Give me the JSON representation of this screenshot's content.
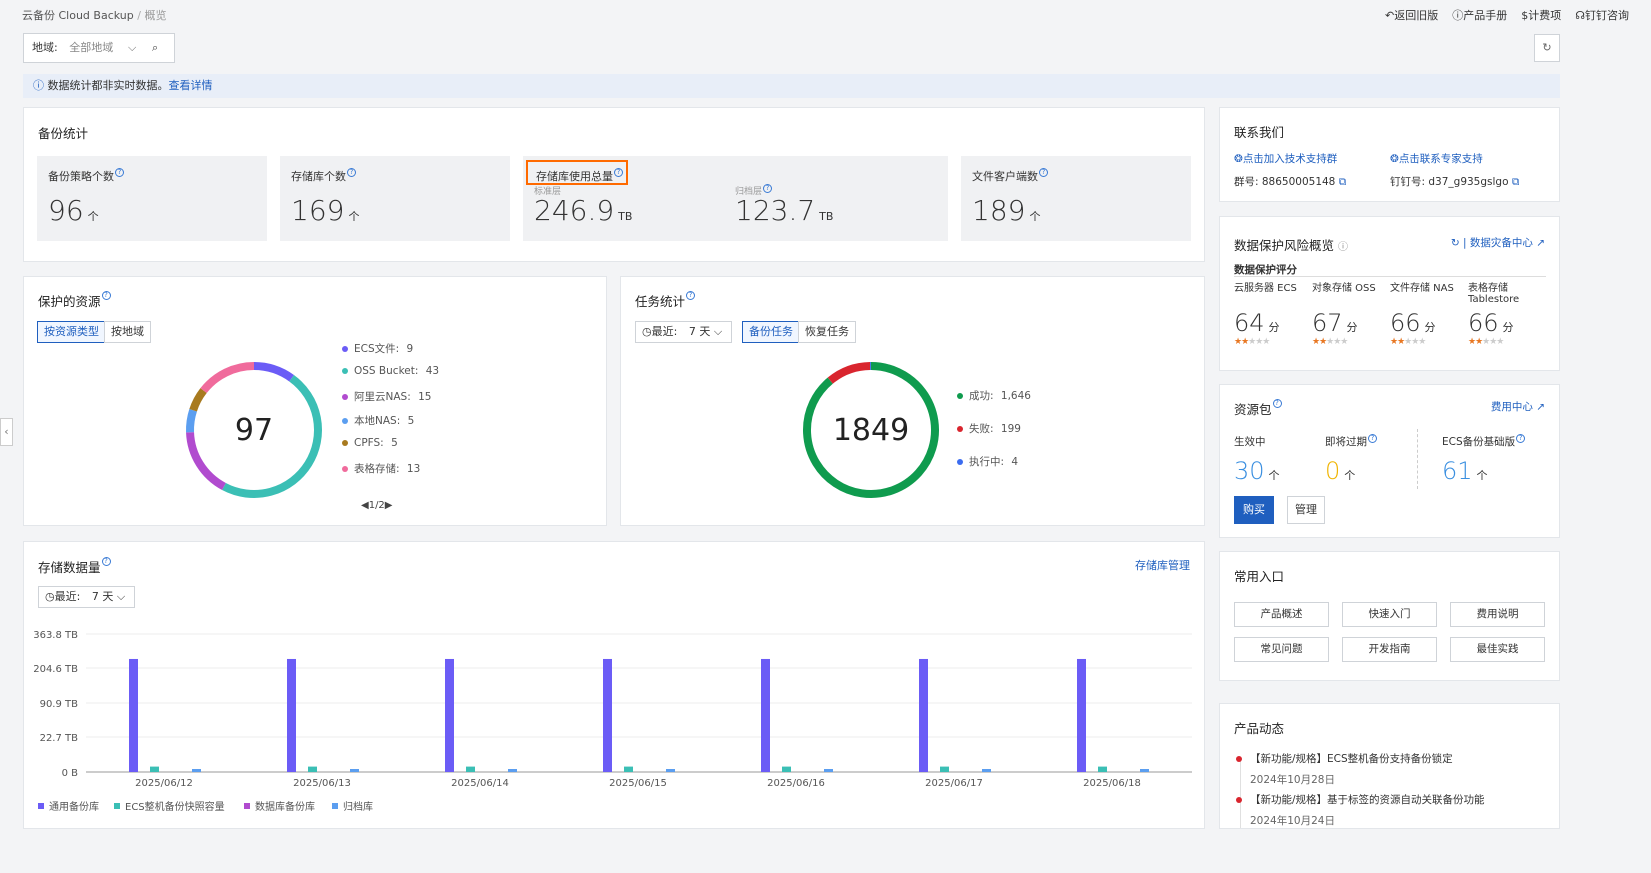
{
  "breadcrumb": {
    "app": "云备份 Cloud Backup",
    "sep": "/",
    "page": "概览"
  },
  "topnav": {
    "back": "返回旧版",
    "manual": "产品手册",
    "billing": "计费项",
    "dingtalk": "钉钉咨询"
  },
  "filter": {
    "label": "地域:",
    "value": "全部地域"
  },
  "notice": {
    "text": "数据统计都非实时数据。",
    "link": "查看详情"
  },
  "backup_stats": {
    "title": "备份统计",
    "policy_label": "备份策略个数",
    "policy_value": "96",
    "vault_label": "存储库个数",
    "vault_value": "169",
    "usage_label": "存储库使用总量",
    "std_label": "标准层",
    "std_value": "246.9",
    "std_unit": "TB",
    "archive_label": "归档层",
    "archive_value": "123.7",
    "archive_unit": "TB",
    "client_label": "文件客户端数",
    "client_value": "189",
    "count_unit": "个"
  },
  "protected": {
    "title": "保护的资源",
    "tabs": [
      "按资源类型",
      "按地域"
    ],
    "total": "97",
    "legend": [
      {
        "name": "ECS文件:",
        "value": "9",
        "color": "#6b5cf6"
      },
      {
        "name": "OSS Bucket:",
        "value": "43",
        "color": "#3bbfb5"
      },
      {
        "name": "阿里云NAS:",
        "value": "15",
        "color": "#b14bcf"
      },
      {
        "name": "本地NAS:",
        "value": "5",
        "color": "#5b9ef0"
      },
      {
        "name": "CPFS:",
        "value": "5",
        "color": "#a87a1f"
      },
      {
        "name": "表格存储:",
        "value": "13",
        "color": "#f06b9c"
      }
    ],
    "pager": "1/2"
  },
  "tasks": {
    "title": "任务统计",
    "range_label": "最近:",
    "range_value": "7 天",
    "tabs": [
      "备份任务",
      "恢复任务"
    ],
    "total": "1849",
    "legend": [
      {
        "name": "成功:",
        "value": "1,646",
        "color": "#0f9b4e"
      },
      {
        "name": "失败:",
        "value": "199",
        "color": "#d9252e"
      },
      {
        "name": "执行中:",
        "value": "4",
        "color": "#3b6cf0"
      }
    ]
  },
  "storage": {
    "title": "存储数据量",
    "manage_link": "存储库管理",
    "range_label": "最近:",
    "range_value": "7 天"
  },
  "chart_data": {
    "type": "bar",
    "title": "存储数据量",
    "categories": [
      "2025/06/12",
      "2025/06/13",
      "2025/06/14",
      "2025/06/15",
      "2025/06/16",
      "2025/06/17",
      "2025/06/18"
    ],
    "y_ticks": [
      "363.8 TB",
      "204.6 TB",
      "90.9 TB",
      "22.7 TB",
      "0 B"
    ],
    "series": [
      {
        "name": "通用备份库",
        "color": "#6b5cf6",
        "values": [
          246.9,
          246.9,
          246.9,
          246.9,
          246.9,
          246.9,
          246.9
        ]
      },
      {
        "name": "ECS整机备份快照容量",
        "color": "#3bbfb5",
        "values": [
          4.5,
          4.5,
          4.5,
          4.5,
          4.5,
          4.5,
          4.5
        ]
      },
      {
        "name": "数据库备份库",
        "color": "#b14bcf",
        "values": [
          0,
          0,
          0,
          0,
          0,
          0,
          0
        ]
      },
      {
        "name": "归档库",
        "color": "#5b9ef0",
        "values": [
          2.5,
          2.5,
          2.5,
          2.5,
          2.5,
          2.5,
          2.5
        ]
      }
    ]
  },
  "contact": {
    "title": "联系我们",
    "join_group": "点击加入技术支持群",
    "expert": "点击联系专家支持",
    "group_no": "群号: 88650005148",
    "dingtalk_no": "钉钉号: d37_g935gslgo"
  },
  "risk": {
    "title": "数据保护风险概览",
    "center_link": "数据灾备中心",
    "score_title": "数据保护评分",
    "unit": "分",
    "items": [
      {
        "name": "云服务器 ECS",
        "score": "64"
      },
      {
        "name": "对象存储 OSS",
        "score": "67"
      },
      {
        "name": "文件存储 NAS",
        "score": "66"
      },
      {
        "name": "表格存储 Tablestore",
        "score": "66"
      }
    ]
  },
  "package": {
    "title": "资源包",
    "fee_link": "费用中心",
    "active_label": "生效中",
    "active_value": "30",
    "expiring_label": "即将过期",
    "expiring_value": "0",
    "ecs_label": "ECS备份基础版",
    "ecs_value": "61",
    "unit": "个",
    "buy": "购买",
    "manage": "管理"
  },
  "entries": {
    "title": "常用入口",
    "items": [
      "产品概述",
      "快速入门",
      "费用说明",
      "常见问题",
      "开发指南",
      "最佳实践"
    ]
  },
  "news": {
    "title": "产品动态",
    "items": [
      {
        "text": "【新功能/规格】ECS整机备份支持备份锁定",
        "date": "2024年10月28日"
      },
      {
        "text": "【新功能/规格】基于标签的资源自动关联备份功能",
        "date": "2024年10月24日"
      }
    ]
  }
}
